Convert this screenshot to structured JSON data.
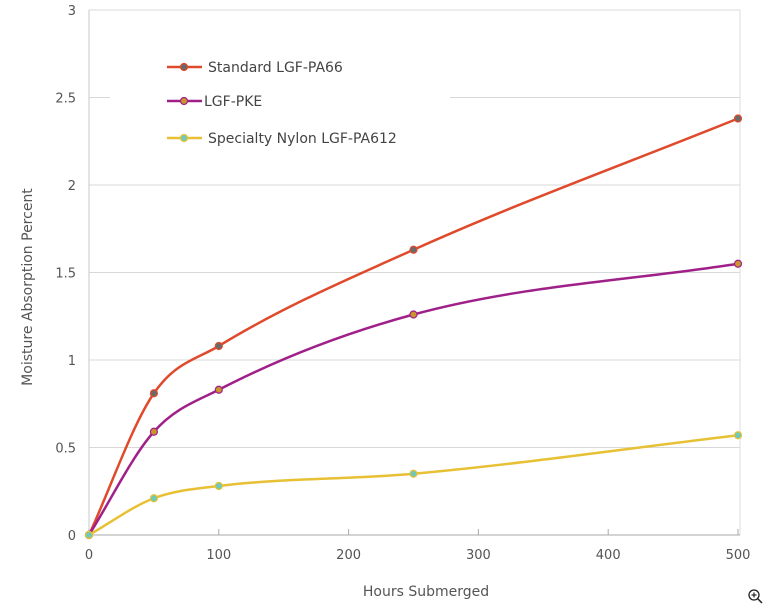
{
  "chart_data": {
    "type": "line",
    "title": "",
    "xlabel": "Hours Submerged",
    "ylabel": "Moisture Absorption Percent",
    "xlim": [
      0,
      500
    ],
    "ylim": [
      0,
      3
    ],
    "xticks": [
      "0",
      "100",
      "200",
      "300",
      "400",
      "500"
    ],
    "yticks": [
      "0",
      "0.5",
      "1",
      "1.5",
      "2",
      "2.5",
      "3"
    ],
    "grid": "horizontal",
    "legend_position": "top-left",
    "smooth": true,
    "x": [
      0,
      50,
      100,
      250,
      500
    ],
    "series": [
      {
        "name": "Standard LGF-PA66",
        "color": "#e04a2c",
        "marker_fill": "#6a6a6a",
        "values": [
          0,
          0.81,
          1.08,
          1.63,
          2.38
        ]
      },
      {
        "name": "LGF-PKE",
        "color": "#a0208a",
        "marker_fill": "#c8962a",
        "values": [
          0,
          0.59,
          0.83,
          1.26,
          1.55
        ]
      },
      {
        "name": "Specialty Nylon LGF-PA612",
        "color": "#e8c034",
        "marker_fill": "#6ccaba",
        "values": [
          0,
          0.21,
          0.28,
          0.35,
          0.57
        ]
      }
    ]
  },
  "toolbar": {
    "zoom_icon": "zoom-in-icon"
  }
}
